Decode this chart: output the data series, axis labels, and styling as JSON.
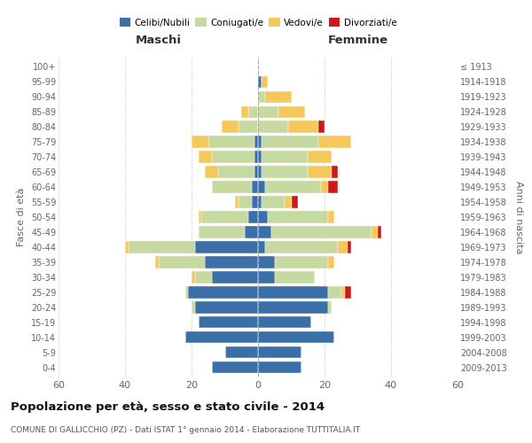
{
  "age_groups": [
    "0-4",
    "5-9",
    "10-14",
    "15-19",
    "20-24",
    "25-29",
    "30-34",
    "35-39",
    "40-44",
    "45-49",
    "50-54",
    "55-59",
    "60-64",
    "65-69",
    "70-74",
    "75-79",
    "80-84",
    "85-89",
    "90-94",
    "95-99",
    "100+"
  ],
  "birth_years": [
    "2009-2013",
    "2004-2008",
    "1999-2003",
    "1994-1998",
    "1989-1993",
    "1984-1988",
    "1979-1983",
    "1974-1978",
    "1969-1973",
    "1964-1968",
    "1959-1963",
    "1954-1958",
    "1949-1953",
    "1944-1948",
    "1939-1943",
    "1934-1938",
    "1929-1933",
    "1924-1928",
    "1919-1923",
    "1914-1918",
    "≤ 1913"
  ],
  "colors": {
    "celibi": "#3a6fa8",
    "coniugati": "#c5d9a0",
    "vedovi": "#f5c85c",
    "divorziati": "#cc1a1a"
  },
  "maschi": {
    "celibi": [
      14,
      10,
      22,
      18,
      19,
      21,
      14,
      16,
      19,
      4,
      3,
      2,
      2,
      1,
      1,
      1,
      0,
      0,
      0,
      0,
      0
    ],
    "coniugati": [
      0,
      0,
      0,
      0,
      1,
      1,
      5,
      14,
      20,
      14,
      14,
      4,
      12,
      11,
      13,
      14,
      6,
      3,
      0,
      0,
      0
    ],
    "vedovi": [
      0,
      0,
      0,
      0,
      0,
      0,
      1,
      1,
      1,
      0,
      1,
      1,
      0,
      4,
      4,
      5,
      5,
      2,
      0,
      0,
      0
    ],
    "divorziati": [
      0,
      0,
      0,
      0,
      0,
      0,
      0,
      0,
      0,
      0,
      0,
      0,
      0,
      0,
      0,
      0,
      0,
      0,
      0,
      0,
      0
    ]
  },
  "femmine": {
    "nubili": [
      13,
      13,
      23,
      16,
      21,
      21,
      5,
      5,
      2,
      4,
      3,
      1,
      2,
      1,
      1,
      1,
      0,
      0,
      0,
      1,
      0
    ],
    "coniugate": [
      0,
      0,
      0,
      0,
      1,
      4,
      12,
      16,
      22,
      30,
      18,
      7,
      17,
      14,
      14,
      17,
      9,
      6,
      2,
      0,
      0
    ],
    "vedove": [
      0,
      0,
      0,
      0,
      0,
      1,
      0,
      2,
      3,
      2,
      2,
      2,
      2,
      7,
      7,
      10,
      9,
      8,
      8,
      2,
      0
    ],
    "divorziate": [
      0,
      0,
      0,
      0,
      0,
      2,
      0,
      0,
      1,
      1,
      0,
      2,
      3,
      2,
      0,
      0,
      2,
      0,
      0,
      0,
      0
    ]
  },
  "xlim": 60,
  "title": "Popolazione per età, sesso e stato civile - 2014",
  "subtitle": "COMUNE DI GALLICCHIO (PZ) - Dati ISTAT 1° gennaio 2014 - Elaborazione TUTTITALIA.IT",
  "ylabel_left": "Fasce di età",
  "ylabel_right": "Anni di nascita"
}
